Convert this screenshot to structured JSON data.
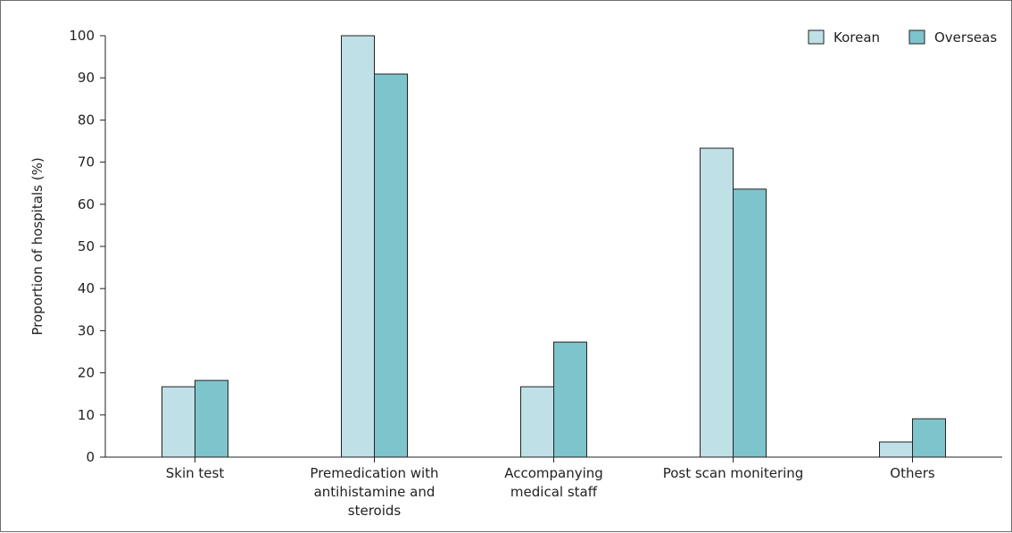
{
  "chart_data": {
    "type": "bar",
    "categories": [
      [
        "Skin test"
      ],
      [
        "Premedication with",
        "antihistamine and",
        "steroids"
      ],
      [
        "Accompanying",
        "medical staff"
      ],
      [
        "Post scan monitering"
      ],
      [
        "Others"
      ]
    ],
    "series": [
      {
        "name": "Korean",
        "color": "#bfe0e6",
        "values": [
          16.7,
          100,
          16.7,
          73.3,
          3.6
        ]
      },
      {
        "name": "Overseas",
        "color": "#7ec4cc",
        "values": [
          18.2,
          90.9,
          27.3,
          63.6,
          9.1
        ]
      }
    ],
    "ylabel": "Proportion of hospitals (%)",
    "xlabel": "",
    "ylim": [
      0,
      100
    ],
    "yticks": [
      0,
      10,
      20,
      30,
      40,
      50,
      60,
      70,
      80,
      90,
      100
    ],
    "grid": false,
    "legend": "top-right"
  }
}
